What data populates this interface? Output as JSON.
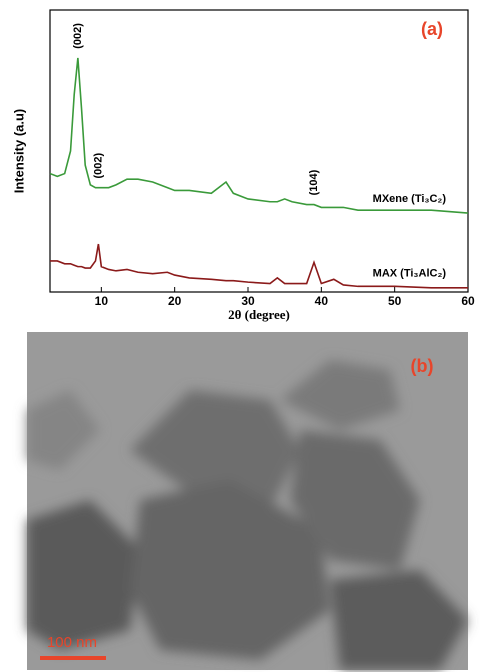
{
  "chart_data": {
    "type": "line",
    "panel_label": "(a)",
    "x_label": "2θ (degree)",
    "y_label": "Intensity (a.u)",
    "x": [
      3,
      4,
      5,
      5.8,
      6.3,
      6.8,
      7.3,
      7.8,
      8.5,
      9.2,
      9.6,
      10,
      11,
      12,
      13.5,
      15,
      17,
      19,
      20,
      22,
      25,
      27,
      28,
      30,
      33,
      34,
      35,
      36,
      38,
      39,
      40,
      41.7,
      43,
      45,
      50,
      55,
      60
    ],
    "series": [
      {
        "name": "MXene (Ti₃C₂)",
        "color": "#3a9a3a",
        "values": [
          42,
          41,
          42,
          50,
          70,
          83,
          65,
          45,
          38,
          37,
          37,
          37,
          37,
          38,
          40,
          40,
          39,
          37,
          36,
          36,
          35,
          39,
          35,
          33,
          32,
          32,
          33,
          32,
          31,
          31,
          30,
          30,
          30,
          29,
          29,
          29,
          28
        ]
      },
      {
        "name": "MAX (Ti₃AlC₂)",
        "color": "#8b1a1a",
        "values": [
          11,
          11,
          10,
          10,
          9.5,
          9,
          9,
          8.5,
          8.5,
          11,
          17,
          9,
          8,
          7.5,
          8,
          7,
          6.5,
          7,
          6,
          5,
          4.5,
          4,
          4,
          3.5,
          3,
          5,
          3,
          3,
          3,
          10.5,
          3,
          4.5,
          2.5,
          2,
          2,
          1.5,
          1.5
        ]
      }
    ],
    "annotations": [
      {
        "text": "(002)",
        "x": 6.8
      },
      {
        "text": "(002)",
        "x": 9.6
      },
      {
        "text": "(104)",
        "x": 39
      }
    ],
    "xlim": [
      3,
      60
    ],
    "xticks": [
      10,
      20,
      30,
      40,
      50,
      60
    ],
    "ylim": [
      0,
      100
    ]
  },
  "micrograph": {
    "panel_label": "(b)",
    "scale_bar": "100 nm"
  }
}
